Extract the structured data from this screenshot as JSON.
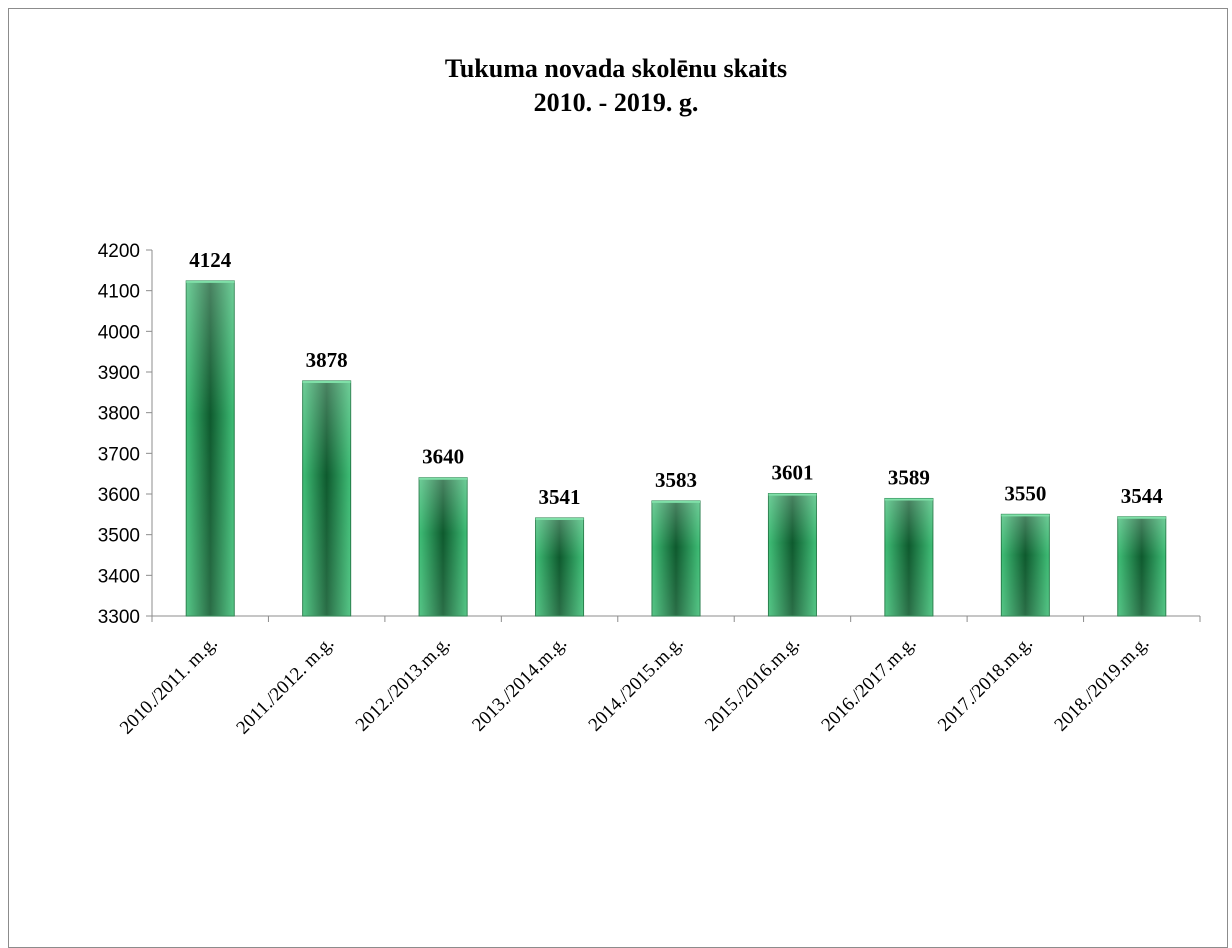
{
  "chart_data": {
    "type": "bar",
    "title_line1": "Tukuma novada skolēnu skaits",
    "title_line2": "2010. - 2019. g.",
    "categories": [
      "2010./2011. m.g.",
      "2011./2012. m.g.",
      "2012./2013.m.g.",
      "2013./2014.m.g.",
      "2014./2015.m.g.",
      "2015./2016.m.g.",
      "2016./2017.m.g.",
      "2017./2018.m.g.",
      "2018./2019.m.g."
    ],
    "values": [
      4124,
      3878,
      3640,
      3541,
      3583,
      3601,
      3589,
      3550,
      3544
    ],
    "ylim": [
      3300,
      4200
    ],
    "yticks": [
      3300,
      3400,
      3500,
      3600,
      3700,
      3800,
      3900,
      4000,
      4100,
      4200
    ],
    "bar_color": "#2e9e5b",
    "bar_color_dark": "#0e5a2e",
    "grid": false,
    "data_labels": true
  }
}
